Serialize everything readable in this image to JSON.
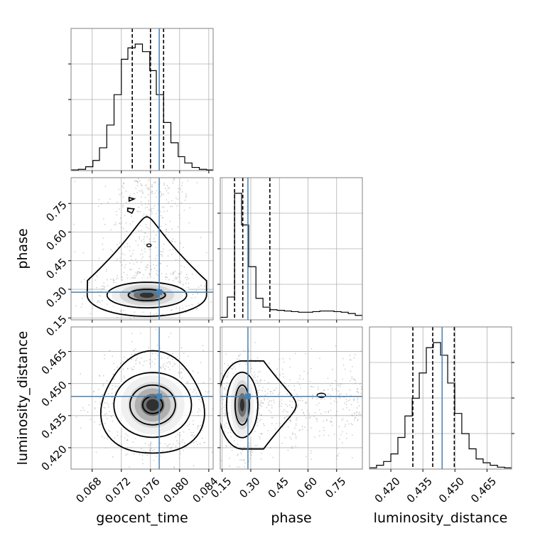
{
  "chart_data": {
    "type": "corner",
    "parameters": [
      "geocent_time",
      "phase",
      "luminosity_distance"
    ],
    "axis_labels": {
      "geocent_time": "geocent_time",
      "phase": "phase",
      "luminosity_distance": "luminosity_distance"
    },
    "ranges": {
      "geocent_time": [
        0.0651,
        0.0846
      ],
      "phase": [
        0.14,
        0.885
      ],
      "luminosity_distance": [
        0.41,
        0.4765
      ]
    },
    "ticks": {
      "geocent_time": [
        "0.068",
        "0.072",
        "0.076",
        "0.080",
        "0.084"
      ],
      "phase": [
        "0.15",
        "0.30",
        "0.45",
        "0.60",
        "0.75"
      ],
      "luminosity_distance": [
        "0.420",
        "0.435",
        "0.450",
        "0.465"
      ]
    },
    "truths": {
      "geocent_time": 0.0772,
      "phase": 0.285,
      "luminosity_distance": 0.444
    },
    "quantiles": {
      "geocent_time": [
        0.0735,
        0.076,
        0.0778
      ],
      "phase": [
        0.215,
        0.258,
        0.4
      ],
      "luminosity_distance": [
        0.4303,
        0.4396,
        0.4497
      ]
    },
    "histograms": {
      "geocent_time": {
        "edges": [
          0.0651,
          0.0661,
          0.0671,
          0.0681,
          0.069,
          0.07,
          0.071,
          0.072,
          0.0729,
          0.0739,
          0.0749,
          0.0759,
          0.0768,
          0.0778,
          0.0788,
          0.0798,
          0.0807,
          0.0817,
          0.0827,
          0.0837,
          0.0846
        ],
        "counts": [
          0.005,
          0.01,
          0.03,
          0.08,
          0.18,
          0.36,
          0.6,
          0.88,
          0.97,
          1.0,
          0.94,
          0.79,
          0.6,
          0.38,
          0.22,
          0.11,
          0.06,
          0.025,
          0.01,
          0.005
        ]
      },
      "phase": {
        "edges": [
          0.14,
          0.177,
          0.215,
          0.252,
          0.289,
          0.327,
          0.364,
          0.401,
          0.438,
          0.476,
          0.513,
          0.55,
          0.587,
          0.625,
          0.662,
          0.699,
          0.736,
          0.774,
          0.811,
          0.848,
          0.885
        ],
        "counts": [
          0.02,
          0.18,
          1.0,
          0.75,
          0.42,
          0.17,
          0.1,
          0.08,
          0.075,
          0.07,
          0.065,
          0.06,
          0.06,
          0.065,
          0.07,
          0.07,
          0.065,
          0.06,
          0.05,
          0.035
        ]
      },
      "luminosity_distance": {
        "edges": [
          0.41,
          0.4133,
          0.4166,
          0.42,
          0.4233,
          0.4266,
          0.43,
          0.4333,
          0.4366,
          0.4399,
          0.4433,
          0.4466,
          0.4499,
          0.4532,
          0.4566,
          0.4599,
          0.4632,
          0.4665,
          0.4699,
          0.4732,
          0.4765
        ],
        "counts": [
          0.01,
          0.03,
          0.06,
          0.12,
          0.25,
          0.42,
          0.56,
          0.76,
          0.96,
          1.0,
          0.9,
          0.68,
          0.44,
          0.28,
          0.16,
          0.08,
          0.05,
          0.03,
          0.015,
          0.01
        ]
      }
    },
    "joint_peaks": {
      "phase_vs_geocent_time": {
        "x": 0.0755,
        "y": 0.27
      },
      "luminosity_distance_vs_geocent_time": {
        "x": 0.0763,
        "y": 0.44
      },
      "luminosity_distance_vs_phase": {
        "x": 0.255,
        "y": 0.44
      }
    },
    "grid": true,
    "truth_color": "#4682b4"
  }
}
